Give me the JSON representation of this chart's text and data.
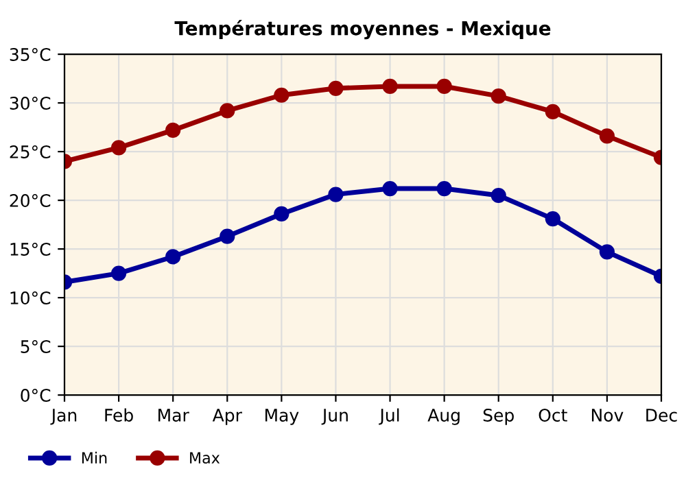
{
  "chart_data": {
    "type": "line",
    "title": "Températures moyennes - Mexique",
    "categories": [
      "Jan",
      "Feb",
      "Mar",
      "Apr",
      "May",
      "Jun",
      "Jul",
      "Aug",
      "Sep",
      "Oct",
      "Nov",
      "Dec"
    ],
    "series": [
      {
        "name": "Min",
        "color": "#000099",
        "values": [
          11.6,
          12.5,
          14.2,
          16.3,
          18.6,
          20.6,
          21.2,
          21.2,
          20.5,
          18.1,
          14.7,
          12.2
        ]
      },
      {
        "name": "Max",
        "color": "#990000",
        "values": [
          24.0,
          25.4,
          27.2,
          29.2,
          30.8,
          31.5,
          31.7,
          31.7,
          30.7,
          29.1,
          26.6,
          24.4
        ]
      }
    ],
    "ylim": [
      0,
      35
    ],
    "yticks": [
      {
        "value": 0,
        "label": "0°C"
      },
      {
        "value": 5,
        "label": "5°C"
      },
      {
        "value": 10,
        "label": "10°C"
      },
      {
        "value": 15,
        "label": "15°C"
      },
      {
        "value": 20,
        "label": "20°C"
      },
      {
        "value": 25,
        "label": "25°C"
      },
      {
        "value": 30,
        "label": "30°C"
      },
      {
        "value": 35,
        "label": "35°C"
      }
    ],
    "grid": true,
    "legend": "bottom left",
    "marker": "circle",
    "line_style": "solid"
  }
}
